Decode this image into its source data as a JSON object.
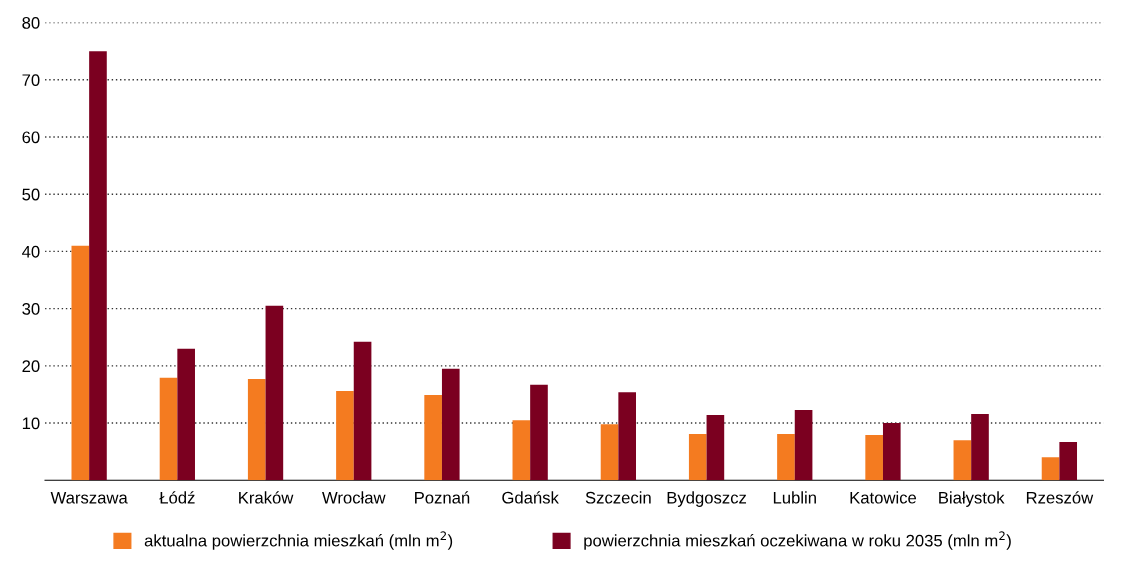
{
  "chart_data": {
    "type": "bar",
    "categories": [
      "Warszawa",
      "Łódź",
      "Kraków",
      "Wrocław",
      "Poznań",
      "Gdańsk",
      "Szczecin",
      "Bydgoszcz",
      "Lublin",
      "Katowice",
      "Białystok",
      "Rzeszów"
    ],
    "series": [
      {
        "name": "aktualna powierzchnia mieszkań (mln m$^{2}$)",
        "color": "#f47b20",
        "values": [
          41,
          17.9,
          17.7,
          15.6,
          14.9,
          10.5,
          9.8,
          8.1,
          8.1,
          7.9,
          7.0,
          4.0
        ]
      },
      {
        "name": "powierzchnia mieszkań oczekiwana w roku 2035 (mln m$^{2}$)",
        "color": "#7b0020",
        "values": [
          75,
          23,
          30.5,
          24.2,
          19.5,
          16.7,
          15.4,
          11.4,
          12.3,
          10,
          11.6,
          6.7
        ]
      }
    ],
    "ylim": [
      0,
      80
    ],
    "yticks": [
      10,
      20,
      30,
      40,
      50,
      60,
      70,
      80
    ],
    "grid": "y",
    "legend": "bottom"
  }
}
